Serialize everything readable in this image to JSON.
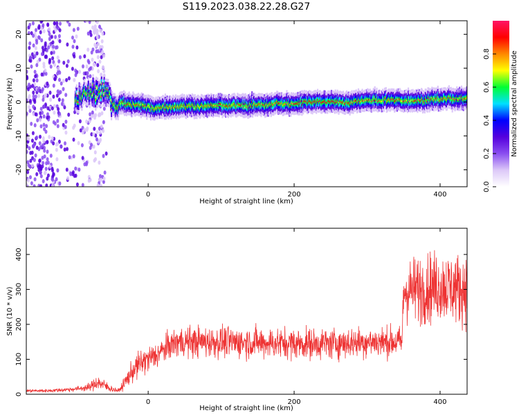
{
  "title": "S119.2023.038.22.28.G27",
  "chart_data": [
    {
      "type": "heatmap",
      "xlabel": "Height of straight line (km)",
      "ylabel": "Frequency (Hz)",
      "xlim": [
        -167,
        437
      ],
      "ylim": [
        -25,
        24
      ],
      "xticks": [
        0,
        200,
        400
      ],
      "yticks": [
        -20,
        -10,
        0,
        10,
        20
      ],
      "ytick_labels": [
        "-20",
        "-10",
        "0",
        "10",
        "20"
      ],
      "colorbar": {
        "label": "Normalized spectral amplitude",
        "range": [
          0,
          1
        ],
        "ticks": [
          0.0,
          0.2,
          0.4,
          0.6,
          0.8
        ],
        "tick_labels": [
          "0.0",
          "0.2",
          "0.4",
          "0.6",
          "0.8"
        ],
        "colors": [
          "#ffffff",
          "#dcc8f8",
          "#8a4ef0",
          "#5500dd",
          "#0000ff",
          "#00e0ff",
          "#00ff33",
          "#ffff00",
          "#ff8800",
          "#ff0000",
          "#ff1466"
        ]
      },
      "ridge": {
        "x": [
          -100,
          -90,
          -80,
          -70,
          -62,
          -55,
          -50,
          -44,
          -38,
          -30,
          -20,
          -10,
          0,
          20,
          40,
          60,
          80,
          100,
          120,
          140,
          160,
          180,
          200,
          220,
          250,
          280,
          300,
          320,
          340,
          360,
          380,
          400,
          420,
          437
        ],
        "freq": [
          1,
          2,
          3,
          2,
          4,
          3,
          0,
          -2,
          0,
          -1,
          -0.5,
          -1,
          -1.5,
          -1.5,
          -1.2,
          -1.3,
          -1.2,
          -1,
          -1.2,
          -1,
          -1,
          -0.5,
          -0.5,
          0,
          0,
          0,
          0.5,
          0.5,
          0.5,
          0.5,
          0.7,
          0.8,
          1,
          1
        ]
      }
    },
    {
      "type": "line",
      "xlabel": "Height of straight line (km)",
      "ylabel": "SNR (10 * v/v)",
      "xlim": [
        -167,
        437
      ],
      "ylim": [
        0,
        475
      ],
      "xticks": [
        0,
        200,
        400
      ],
      "yticks": [
        0,
        100,
        200,
        300,
        400
      ],
      "series": [
        {
          "color": "#ee3333",
          "envelope": {
            "x": [
              -167,
              -140,
              -120,
              -100,
              -80,
              -70,
              -60,
              -50,
              -40,
              -30,
              -20,
              -10,
              0,
              10,
              20,
              30,
              40,
              60,
              100,
              150,
              200,
              250,
              300,
              348,
              350,
              370,
              400,
              437
            ],
            "mean": [
              10,
              10,
              12,
              15,
              20,
              35,
              25,
              15,
              10,
              40,
              70,
              90,
              100,
              110,
              125,
              140,
              150,
              150,
              150,
              148,
              145,
              145,
              150,
              150,
              295,
              300,
              310,
              300
            ],
            "spread": [
              4,
              4,
              5,
              6,
              10,
              20,
              15,
              8,
              5,
              20,
              30,
              35,
              35,
              35,
              35,
              35,
              40,
              40,
              40,
              40,
              40,
              40,
              40,
              40,
              80,
              90,
              90,
              90
            ]
          }
        }
      ]
    }
  ]
}
